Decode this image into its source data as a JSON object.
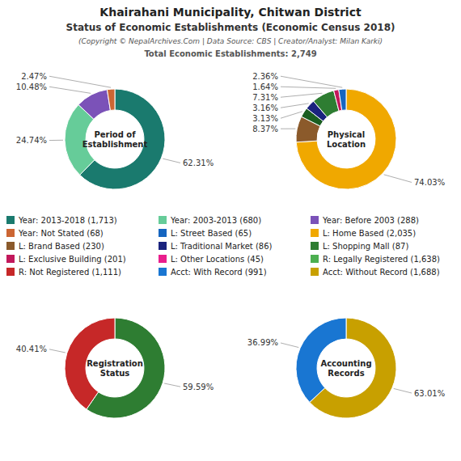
{
  "title": "Khairahani Municipality, Chitwan District",
  "subtitle": "Status of Economic Establishments (Economic Census 2018)",
  "annotations": [
    "(Copyright © NepalArchives.Com | Data Source: CBS | Creator/Analyst: Milan Karki)",
    "Total Economic Establishments: 2,749"
  ],
  "legend_entries": [
    {
      "label": "Year: 2013-2018 (1,713)",
      "color": "#1a7a6e"
    },
    {
      "label": "Year: 2003-2013 (680)",
      "color": "#66cc99"
    },
    {
      "label": "Year: Before 2003 (288)",
      "color": "#7b52b8"
    },
    {
      "label": "Year: Not Stated (68)",
      "color": "#cc6633"
    },
    {
      "label": "L: Street Based (65)",
      "color": "#1565c0"
    },
    {
      "label": "L: Home Based (2,035)",
      "color": "#f0a800"
    },
    {
      "label": "L: Brand Based (230)",
      "color": "#8b5a2b"
    },
    {
      "label": "L: Traditional Market (86)",
      "color": "#1a237e"
    },
    {
      "label": "L: Shopping Mall (87)",
      "color": "#2e7d32"
    },
    {
      "label": "L: Exclusive Building (201)",
      "color": "#c2185b"
    },
    {
      "label": "L: Other Locations (45)",
      "color": "#e91e8c"
    },
    {
      "label": "R: Legally Registered (1,638)",
      "color": "#4caf50"
    },
    {
      "label": "R: Not Registered (1,111)",
      "color": "#c62828"
    },
    {
      "label": "Acct: With Record (991)",
      "color": "#1976d2"
    },
    {
      "label": "Acct: Without Record (1,688)",
      "color": "#c8a000"
    }
  ],
  "chart_data": [
    {
      "type": "pie",
      "title": "Period of\nEstablishment",
      "values": [
        62.31,
        24.74,
        10.48,
        2.47
      ],
      "colors": [
        "#1a7a6e",
        "#66cc99",
        "#7b52b8",
        "#cc6633"
      ],
      "data_labels": true,
      "value_labels": [
        "62.31%",
        "24.74%",
        "10.48%",
        "2.47%"
      ]
    },
    {
      "type": "pie",
      "title": "Physical\nLocation",
      "values": [
        74.03,
        8.37,
        3.13,
        3.16,
        7.31,
        1.64,
        2.36
      ],
      "colors": [
        "#f0a800",
        "#8b5a2b",
        "#1a5e20",
        "#1a237e",
        "#2e7d32",
        "#c2185b",
        "#1565c0"
      ],
      "data_labels": true,
      "value_labels": [
        "74.03%",
        "8.37%",
        "3.13%",
        "3.16%",
        "7.31%",
        "1.64%",
        "2.36%"
      ]
    },
    {
      "type": "pie",
      "title": "Registration\nStatus",
      "values": [
        59.59,
        40.41
      ],
      "colors": [
        "#2e7d32",
        "#c62828"
      ],
      "data_labels": true,
      "value_labels": [
        "59.59%",
        "40.41%"
      ]
    },
    {
      "type": "pie",
      "title": "Accounting\nRecords",
      "values": [
        63.01,
        36.99
      ],
      "colors": [
        "#c8a000",
        "#1976d2"
      ],
      "data_labels": true,
      "value_labels": [
        "63.01%",
        "36.99%"
      ]
    }
  ]
}
